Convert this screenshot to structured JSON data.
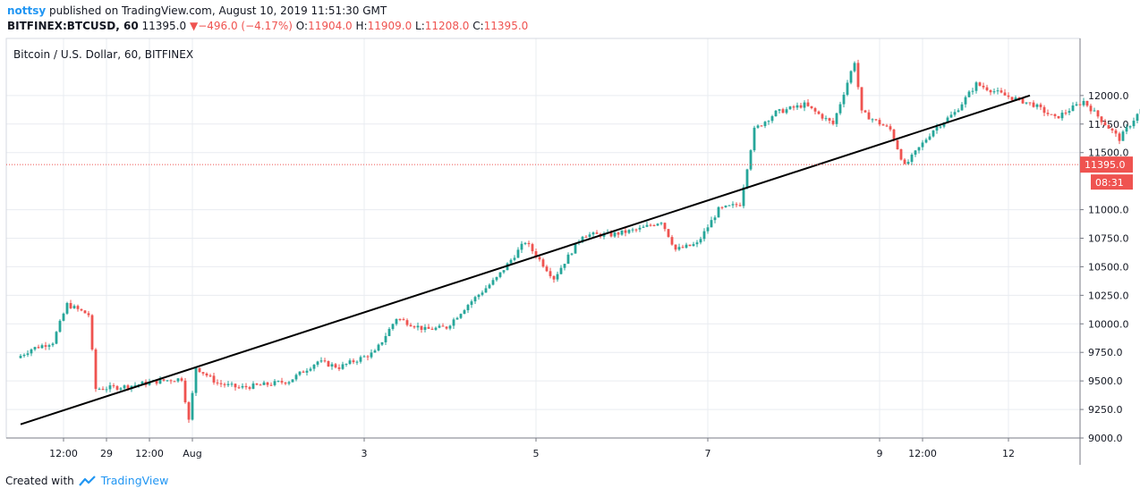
{
  "header": {
    "author": "nottsy",
    "published": " published on TradingView.com, August 10, 2019 11:51:30 GMT",
    "symbol": "BITFINEX:BTCUSD, 60",
    "last": "11395.0",
    "arrow": "▼",
    "change": "−496.0 (−4.17%)",
    "o_label": "O:",
    "o_value": "11904.0",
    "h_label": "H:",
    "h_value": "11909.0",
    "l_label": "L:",
    "l_value": "11208.0",
    "c_label": "C:",
    "c_value": "11395.0"
  },
  "colors": {
    "up": "#26a69a",
    "down": "#ef5350",
    "grid": "#e9ecf1",
    "axis": "#787b86",
    "trendline": "#000000",
    "price_tag": "#ef5350"
  },
  "footer": {
    "created_with": "Created with",
    "brand": "TradingView",
    "logo_icon": "tradingview-cloud-icon"
  },
  "chart_data": {
    "type": "candlestick",
    "title": "Bitcoin / U.S. Dollar, 60, BITFINEX",
    "xlabel": "",
    "ylabel": "",
    "ylim": [
      9000,
      12500
    ],
    "y_ticks": [
      "12000.0",
      "11750.0",
      "11500.0",
      "11000.0",
      "10750.0",
      "10500.0",
      "10250.0",
      "10000.0",
      "9750.0",
      "9500.0",
      "9250.0",
      "9000.0"
    ],
    "y_tick_values": [
      12000,
      11750,
      11500,
      11000,
      10750,
      10500,
      10250,
      10000,
      9750,
      9500,
      9250,
      9000
    ],
    "x_ticks": [
      "12:00",
      "29",
      "12:00",
      "Aug",
      "3",
      "5",
      "7",
      "9",
      "12:00",
      "12"
    ],
    "x_tick_hours": [
      12,
      24,
      36,
      48,
      96,
      144,
      192,
      240,
      252,
      276
    ],
    "x_range_hours": [
      -4,
      296
    ],
    "last_price": 11395.0,
    "last_price_label": "11395.0",
    "countdown": "08:31",
    "trendline": {
      "x": [
        0,
        282
      ],
      "y": [
        9120,
        12000
      ]
    },
    "anchors": [
      [
        0,
        9700
      ],
      [
        4,
        9780
      ],
      [
        10,
        9840
      ],
      [
        14,
        10170
      ],
      [
        20,
        10080
      ],
      [
        22,
        9430
      ],
      [
        30,
        9450
      ],
      [
        40,
        9500
      ],
      [
        46,
        9520
      ],
      [
        48,
        9150
      ],
      [
        50,
        9620
      ],
      [
        56,
        9480
      ],
      [
        62,
        9440
      ],
      [
        70,
        9470
      ],
      [
        76,
        9500
      ],
      [
        84,
        9670
      ],
      [
        90,
        9620
      ],
      [
        100,
        9750
      ],
      [
        106,
        10050
      ],
      [
        114,
        9950
      ],
      [
        120,
        9970
      ],
      [
        126,
        10170
      ],
      [
        134,
        10400
      ],
      [
        142,
        10720
      ],
      [
        150,
        10400
      ],
      [
        158,
        10780
      ],
      [
        166,
        10780
      ],
      [
        174,
        10830
      ],
      [
        180,
        10900
      ],
      [
        184,
        10650
      ],
      [
        190,
        10700
      ],
      [
        196,
        11000
      ],
      [
        202,
        11050
      ],
      [
        206,
        11700
      ],
      [
        212,
        11850
      ],
      [
        220,
        11920
      ],
      [
        228,
        11750
      ],
      [
        234,
        12300
      ],
      [
        236,
        11850
      ],
      [
        244,
        11700
      ],
      [
        248,
        11380
      ],
      [
        256,
        11700
      ],
      [
        262,
        11850
      ],
      [
        268,
        12100
      ],
      [
        276,
        12000
      ],
      [
        284,
        11920
      ],
      [
        290,
        11800
      ],
      [
        298,
        11950
      ],
      [
        308,
        11620
      ],
      [
        316,
        11960
      ],
      [
        322,
        11850
      ],
      [
        330,
        11900
      ],
      [
        334,
        11880
      ]
    ],
    "last_candle": {
      "open": 11904.0,
      "high": 11909.0,
      "low": 11208.0,
      "close": 11395.0
    }
  }
}
